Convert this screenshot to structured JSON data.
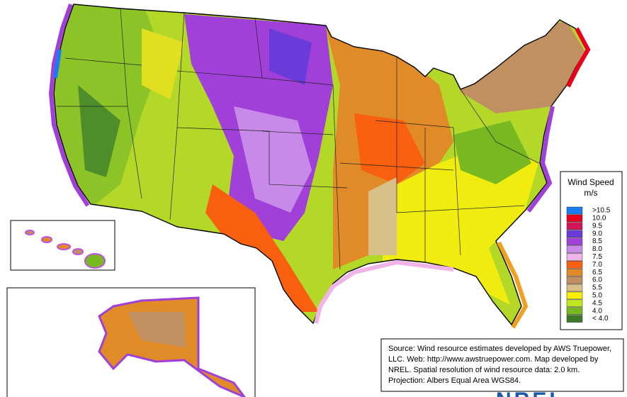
{
  "legend": {
    "title": "Wind Speed",
    "unit": "m/s",
    "items": [
      {
        "label": ">10.5",
        "color": "#1a7cf0"
      },
      {
        "label": "10.0",
        "color": "#e8001e"
      },
      {
        "label": "9.5",
        "color": "#d4145a"
      },
      {
        "label": "9.0",
        "color": "#6a3bd8"
      },
      {
        "label": "8.5",
        "color": "#a040d8"
      },
      {
        "label": "8.0",
        "color": "#c88ae8"
      },
      {
        "label": "7.5",
        "color": "#f0b4e8"
      },
      {
        "label": "7.0",
        "color": "#f86010"
      },
      {
        "label": "6.5",
        "color": "#e08a28"
      },
      {
        "label": "6.0",
        "color": "#c09060"
      },
      {
        "label": "5.5",
        "color": "#d8c088"
      },
      {
        "label": "5.0",
        "color": "#f8f000"
      },
      {
        "label": "4.5",
        "color": "#c0e820"
      },
      {
        "label": "4.0",
        "color": "#78b820"
      },
      {
        "label": "< 4.0",
        "color": "#3c7a28"
      }
    ]
  },
  "source": {
    "lines": [
      "Source: Wind resource estimates developed by AWS Truepower,",
      "LLC.  Web: http://www.awstruepower.com. Map developed by",
      "NREL.  Spatial resolution of wind resource data: 2.0 km.",
      "Projection: Albers Equal Area WGS84."
    ]
  },
  "logo": "NREL"
}
